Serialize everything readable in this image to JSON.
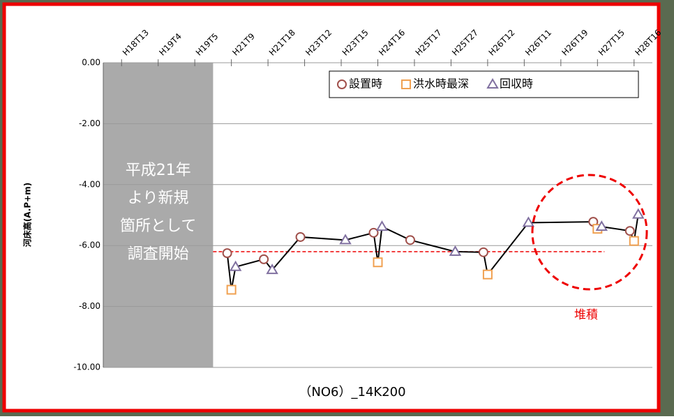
{
  "chart_data": {
    "type": "line",
    "title": "（NO6）_14K200",
    "y_label": "河床高(A.P+m)",
    "categories": [
      "H18T13",
      "H19T4",
      "H19T5",
      "H21T9",
      "H21T18",
      "H23T12",
      "H23T15",
      "H24T16",
      "H25T17",
      "H25T27",
      "H26T12",
      "H26T11",
      "H26T19",
      "H27T15",
      "H28T16"
    ],
    "series": [
      {
        "name": "設置時",
        "color": "#a0504b",
        "marker": "circle",
        "values": [
          null,
          null,
          null,
          -6.25,
          -6.45,
          -5.72,
          null,
          -5.58,
          -5.82,
          null,
          -6.22,
          null,
          null,
          -5.22,
          -5.52
        ]
      },
      {
        "name": "洪水時最深",
        "color": "#f0a050",
        "marker": "square",
        "values": [
          null,
          null,
          null,
          -7.45,
          null,
          null,
          null,
          -6.55,
          null,
          null,
          -6.95,
          null,
          null,
          -5.45,
          -5.85
        ]
      },
      {
        "name": "回収時",
        "color": "#8070a0",
        "marker": "triangle",
        "values": [
          null,
          null,
          null,
          -6.7,
          -6.8,
          null,
          -5.82,
          -5.38,
          null,
          -6.2,
          null,
          -5.25,
          null,
          -5.38,
          -4.98
        ]
      }
    ],
    "ylim": [
      -10,
      0
    ],
    "yticks": [
      {
        "value": 0,
        "label": "0.00"
      },
      {
        "value": -2,
        "label": "-2.00"
      },
      {
        "value": -4,
        "label": "-4.00"
      },
      {
        "value": -6,
        "label": "-6.00"
      },
      {
        "value": -8,
        "label": "-8.00"
      },
      {
        "value": -10,
        "label": "-10.00"
      }
    ],
    "grid": true,
    "legend": "top-right",
    "threshold": -6.2,
    "shaded_note": [
      "平成21年",
      "より新規",
      "箇所として",
      "調査開始"
    ],
    "highlight_label": "堆積"
  }
}
